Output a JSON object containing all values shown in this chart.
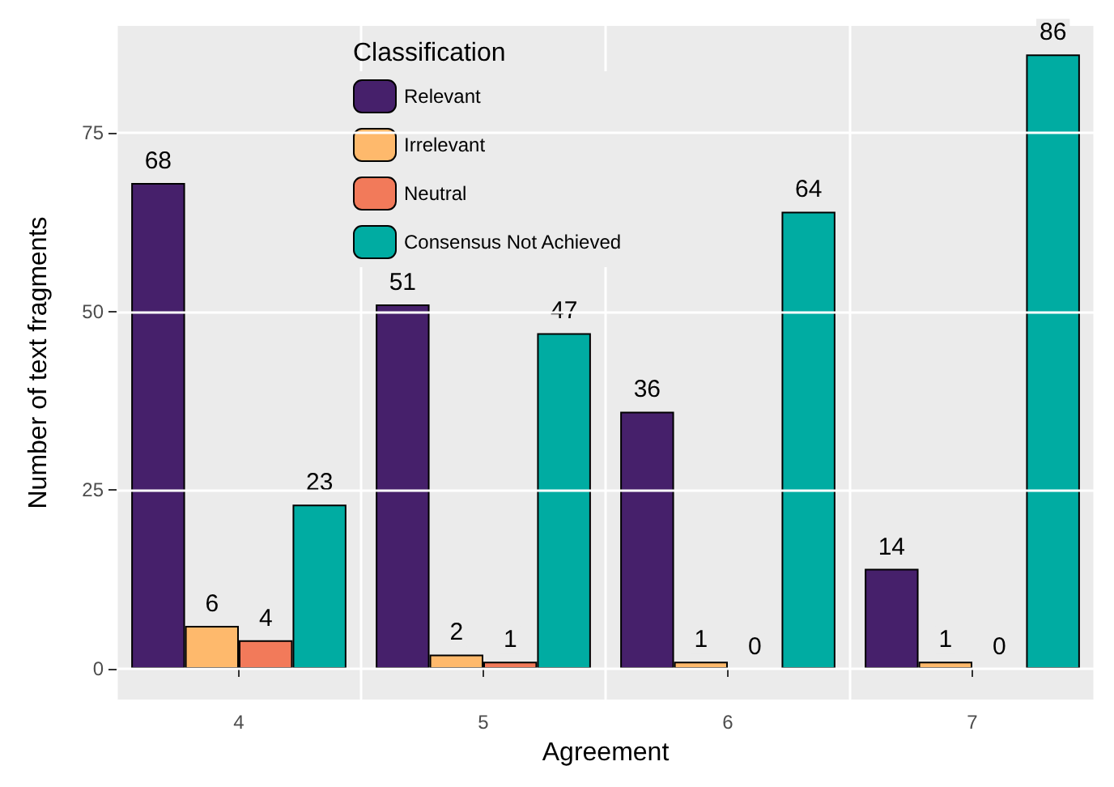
{
  "chart_data": {
    "type": "bar",
    "xlabel": "Agreement",
    "ylabel": "Number of text fragments",
    "legend_title": "Classification",
    "categories": [
      "4",
      "5",
      "6",
      "7"
    ],
    "series": [
      {
        "name": "Relevant",
        "color": "#46206b",
        "values": [
          68,
          51,
          36,
          14
        ]
      },
      {
        "name": "Irrelevant",
        "color": "#feb96c",
        "values": [
          6,
          2,
          1,
          1
        ]
      },
      {
        "name": "Neutral",
        "color": "#f27a5a",
        "values": [
          4,
          1,
          0,
          0
        ]
      },
      {
        "name": "Consensus Not Achieved",
        "color": "#00aca2",
        "values": [
          23,
          47,
          64,
          86
        ]
      }
    ],
    "ylim": [
      -4.3,
      90
    ],
    "yticks": [
      0,
      25,
      50,
      75
    ],
    "grid": true,
    "legend": "top",
    "data_labels": true
  }
}
